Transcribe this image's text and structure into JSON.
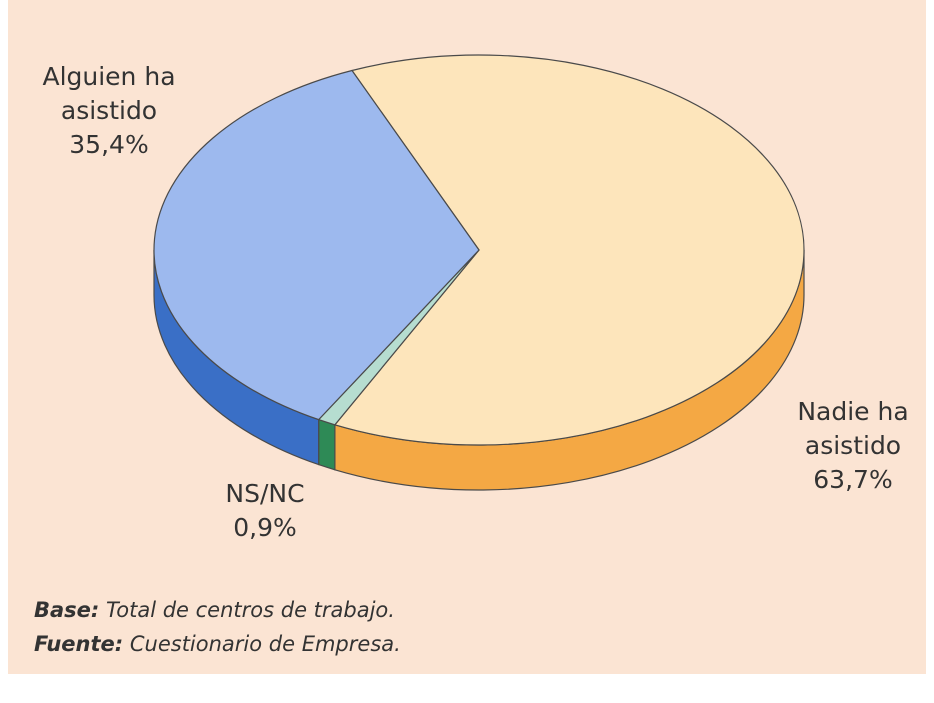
{
  "chart_data": {
    "type": "pie",
    "categories": [
      "Alguien ha asistido",
      "NS/NC",
      "Nadie ha asistido"
    ],
    "values": [
      35.4,
      0.9,
      63.7
    ],
    "value_labels": [
      "35,4%",
      "0,9%",
      "63,7%"
    ],
    "colors": [
      "#9db9ee",
      "#b6ddd0",
      "#fde5bb"
    ],
    "side_colors": [
      "#3a6fc6",
      "#2e8a56",
      "#f4a844"
    ],
    "notes": [
      {
        "label": "Base:",
        "text": "Total de centros de trabajo."
      },
      {
        "label": "Fuente:",
        "text": "Cuestionario de Empresa."
      }
    ]
  }
}
